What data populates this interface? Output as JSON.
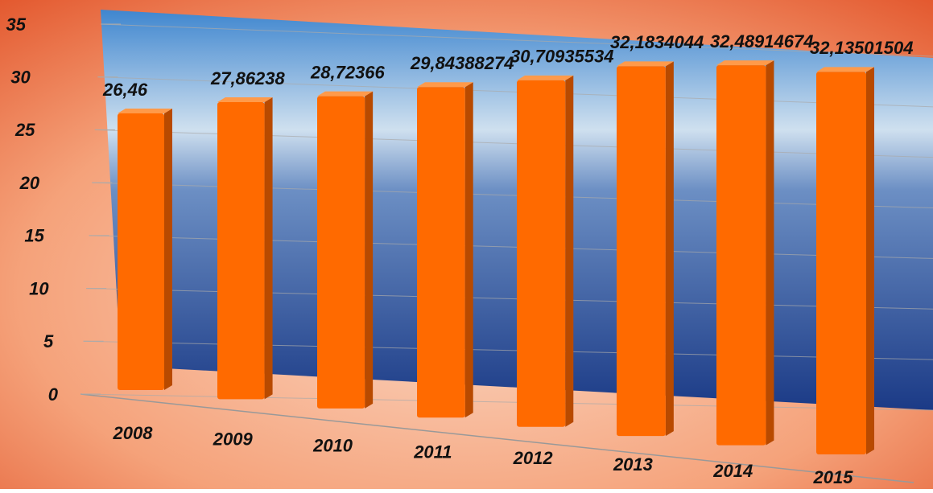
{
  "chart_data": {
    "type": "bar",
    "categories": [
      "2008",
      "2009",
      "2010",
      "2011",
      "2012",
      "2013",
      "2014",
      "2015"
    ],
    "values": [
      26.46,
      27.86238,
      28.72366,
      29.84388274,
      30.70935534,
      32.1834044,
      32.48914674,
      32.13501504
    ],
    "value_labels": [
      "26,46",
      "27,86238",
      "28,72366",
      "29,84388274",
      "30,70935534",
      "32,1834044",
      "32,48914674",
      "32,13501504"
    ],
    "color": "#ff6a00",
    "ylim": [
      0,
      35
    ],
    "yticks": [
      0,
      5,
      10,
      15,
      20,
      25,
      30,
      35
    ],
    "grid": true
  }
}
